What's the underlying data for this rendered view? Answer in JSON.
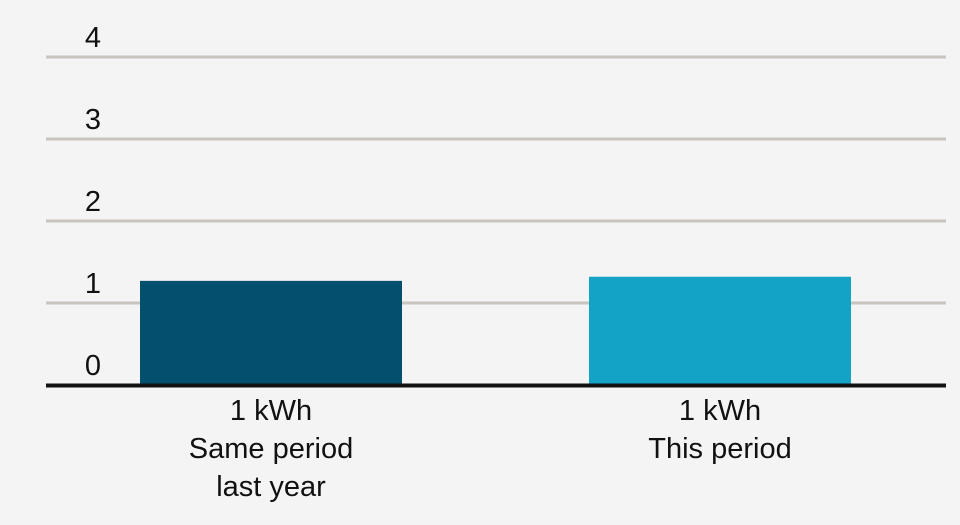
{
  "chart_data": {
    "type": "bar",
    "title": "",
    "xlabel": "",
    "ylabel": "",
    "ylim": [
      0,
      4
    ],
    "y_ticks": [
      "0",
      "1",
      "2",
      "3",
      "4"
    ],
    "grid": true,
    "categories": [
      {
        "value_label": "1 kWh",
        "label_lines": [
          "Same period",
          "last year"
        ]
      },
      {
        "value_label": "1 kWh",
        "label_lines": [
          "This period"
        ]
      }
    ],
    "values": [
      1.27,
      1.32
    ],
    "colors": [
      "#03506e",
      "#12a3c7"
    ],
    "gridline_color": "#c9c5be",
    "axis_color": "#111111"
  }
}
